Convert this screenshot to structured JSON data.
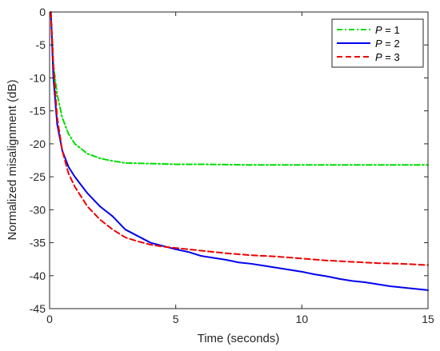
{
  "chart_data": {
    "type": "line",
    "title": "",
    "xlabel": "Time (seconds)",
    "ylabel": "Normalized misalignment (dB)",
    "xlim": [
      0,
      15
    ],
    "ylim": [
      -45,
      0
    ],
    "grid": false,
    "legend_position": "top-right",
    "x_ticks": [
      0,
      5,
      10,
      15
    ],
    "y_ticks": [
      0,
      -5,
      -10,
      -15,
      -20,
      -25,
      -30,
      -35,
      -40,
      -45
    ],
    "x_tick_labels": [
      "0",
      "5",
      "10",
      "15"
    ],
    "y_tick_labels": [
      "0",
      "-5",
      "-10",
      "-15",
      "-20",
      "-25",
      "-30",
      "-35",
      "-40",
      "-45"
    ],
    "series": [
      {
        "name": "P = 1",
        "legend_symbol": "P",
        "legend_value": "= 1",
        "color": "#00dd00",
        "style": "dash-dot",
        "x": [
          0.05,
          0.15,
          0.3,
          0.5,
          0.75,
          1.0,
          1.5,
          2.0,
          2.5,
          3.0,
          4.0,
          5.0,
          6.0,
          8.0,
          10.0,
          12.0,
          14.0,
          15.0
        ],
        "y": [
          0,
          -8,
          -12.5,
          -16,
          -18.5,
          -20,
          -21.5,
          -22.2,
          -22.6,
          -22.9,
          -23.0,
          -23.1,
          -23.1,
          -23.2,
          -23.2,
          -23.2,
          -23.2,
          -23.2
        ]
      },
      {
        "name": "P = 2",
        "legend_symbol": "P",
        "legend_value": "= 2",
        "color": "#0000ee",
        "style": "solid",
        "x": [
          0.05,
          0.15,
          0.3,
          0.5,
          0.75,
          1.0,
          1.5,
          2.0,
          2.5,
          3.0,
          3.5,
          4.0,
          4.5,
          5.0,
          5.5,
          6.0,
          6.5,
          7.0,
          7.5,
          8.0,
          8.5,
          9.0,
          9.5,
          10.0,
          10.5,
          11.0,
          11.5,
          12.0,
          12.5,
          13.0,
          13.5,
          14.0,
          14.5,
          15.0
        ],
        "y": [
          0,
          -10,
          -17,
          -21,
          -23.5,
          -25,
          -27.5,
          -29.5,
          -31,
          -33,
          -34,
          -35,
          -35.5,
          -36,
          -36.4,
          -37,
          -37.3,
          -37.6,
          -38,
          -38.2,
          -38.5,
          -38.8,
          -39.1,
          -39.4,
          -39.8,
          -40.1,
          -40.5,
          -40.8,
          -41,
          -41.3,
          -41.6,
          -41.8,
          -42,
          -42.2
        ]
      },
      {
        "name": "P = 3",
        "legend_symbol": "P",
        "legend_value": "= 3",
        "color": "#ee0000",
        "style": "dashed",
        "x": [
          0.05,
          0.15,
          0.3,
          0.5,
          0.75,
          1.0,
          1.5,
          2.0,
          2.5,
          3.0,
          3.5,
          4.0,
          4.5,
          5.0,
          5.5,
          6.0,
          6.5,
          7.0,
          8.0,
          9.0,
          10.0,
          11.0,
          12.0,
          13.0,
          14.0,
          15.0
        ],
        "y": [
          0,
          -8,
          -16,
          -21,
          -24.5,
          -26.5,
          -29.5,
          -31.5,
          -33,
          -34.2,
          -34.8,
          -35.3,
          -35.6,
          -35.8,
          -36,
          -36.2,
          -36.4,
          -36.6,
          -36.9,
          -37.1,
          -37.4,
          -37.7,
          -37.9,
          -38.1,
          -38.2,
          -38.4
        ]
      }
    ]
  }
}
